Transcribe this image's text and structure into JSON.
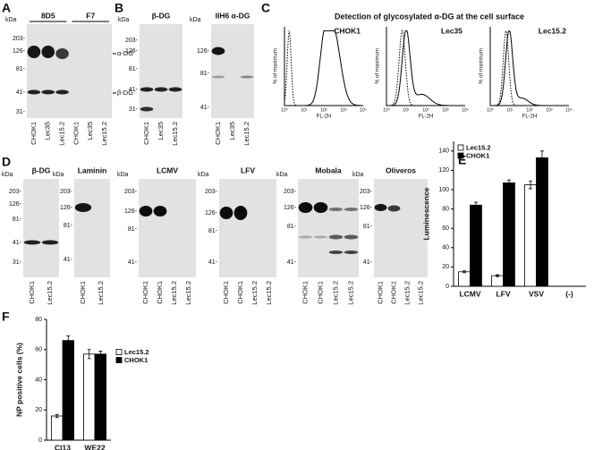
{
  "figure": {
    "A": {
      "label": "A",
      "blots": [
        {
          "unit": "kDa",
          "headers": [
            "8D5",
            "F7"
          ],
          "markers": [
            "203-",
            "126-",
            "81-",
            "41-",
            "31-"
          ],
          "lanes": [
            "CHOK1",
            "Lec35",
            "Lec15.2",
            "CHOK1",
            "Lec35",
            "Lec15.2"
          ],
          "band_labels": [
            "α-DG",
            "β-DG"
          ]
        }
      ]
    },
    "B": {
      "label": "B",
      "blots": [
        {
          "unit": "kDa",
          "headers": [
            "β-DG"
          ],
          "markers": [
            "203-",
            "126-",
            "81-",
            "41-",
            "31-"
          ],
          "lanes": [
            "CHOK1",
            "Lec35",
            "Lec15.2"
          ]
        },
        {
          "unit": "kDa",
          "headers": [
            "IIH6 α-DG"
          ],
          "markers": [
            "126-",
            "81-",
            "41-"
          ],
          "lanes": [
            "CHOK1",
            "Lec35",
            "Lec15.2"
          ]
        }
      ]
    },
    "C": {
      "label": "C",
      "title": "Detection of glycosylated α-DG at the cell surface",
      "plots": [
        {
          "name": "CHOK1",
          "ylabel": "% of maximum",
          "xlabel": "FL-2H",
          "xticks": [
            "10⁰",
            "10¹",
            "10²",
            "10³",
            "10⁴"
          ]
        },
        {
          "name": "Lec35",
          "ylabel": "% of maximum",
          "xlabel": "FL-2H",
          "xticks": [
            "10⁰",
            "10¹",
            "10²",
            "10³",
            "10⁴"
          ]
        },
        {
          "name": "Lec15.2",
          "ylabel": "% of maximum",
          "xlabel": "FL-2H",
          "xticks": [
            "10⁰",
            "10¹",
            "10²",
            "10³",
            "10⁴"
          ]
        }
      ]
    },
    "D": {
      "label": "D",
      "blots": [
        {
          "unit": "kDa",
          "headers": [
            "β-DG"
          ],
          "markers": [
            "203-",
            "126-",
            "81-",
            "41-",
            "31-"
          ],
          "lanes": [
            "CHOK1",
            "Lec15.2"
          ]
        },
        {
          "unit": "kDa",
          "headers": [
            "Laminin"
          ],
          "markers": [
            "203-",
            "126-",
            "81-",
            "41-"
          ],
          "lanes": [
            "CHOK1",
            "Lec15.2"
          ]
        },
        {
          "unit": "kDa",
          "headers": [
            "LCMV"
          ],
          "markers": [
            "203-",
            "126-",
            "81-",
            "41-"
          ],
          "lanes": [
            "CHOK1",
            "CHOK1",
            "Lec15.2",
            "Lec15.2"
          ]
        },
        {
          "unit": "kDa",
          "headers": [
            "LFV"
          ],
          "markers": [
            "203-",
            "126-",
            "81-",
            "41-"
          ],
          "lanes": [
            "CHOK1",
            "CHOK1",
            "Lec15.2",
            "Lec15.2"
          ]
        },
        {
          "unit": "kDa",
          "headers": [
            "Mobala"
          ],
          "markers": [
            "203-",
            "126-",
            "81-",
            "41-"
          ],
          "lanes": [
            "CHOK1",
            "CHOK1",
            "Lec15.2",
            "Lec15.2"
          ]
        },
        {
          "unit": "kDa",
          "headers": [
            "Oliveros"
          ],
          "markers": [
            "203-",
            "126-",
            "81-",
            "41-"
          ],
          "lanes": [
            "CHOK1",
            "CHOK1",
            "Lec15.2",
            "Lec15.2"
          ]
        }
      ]
    },
    "E": {
      "label": "E"
    },
    "F": {
      "label": "F"
    }
  },
  "chart_data": [
    {
      "type": "bar",
      "ylabel": "Luminescence",
      "categories": [
        "LCMV",
        "LFV",
        "VSV",
        "(-)"
      ],
      "series": [
        {
          "name": "Lec15.2",
          "color": "#ffffff",
          "values": [
            15,
            11,
            105,
            0
          ],
          "errors": [
            1,
            1,
            4,
            0
          ]
        },
        {
          "name": "CHOK1",
          "color": "#000000",
          "values": [
            84,
            107,
            133,
            0
          ],
          "errors": [
            3,
            3,
            7,
            0
          ]
        }
      ],
      "ylim": [
        0,
        150
      ],
      "yticks": [
        0,
        20,
        40,
        60,
        80,
        100,
        120,
        140
      ],
      "legend": "upper left"
    },
    {
      "type": "bar",
      "ylabel": "NP positive cells (%)",
      "categories": [
        "Cl13",
        "WE22"
      ],
      "series": [
        {
          "name": "Lec15.2",
          "color": "#ffffff",
          "values": [
            16,
            57
          ],
          "errors": [
            1,
            3
          ]
        },
        {
          "name": "CHOK1",
          "color": "#000000",
          "values": [
            66,
            57
          ],
          "errors": [
            3,
            2
          ]
        }
      ],
      "ylim": [
        0,
        80
      ],
      "yticks": [
        0,
        20,
        40,
        60,
        80
      ],
      "legend": "right"
    }
  ]
}
